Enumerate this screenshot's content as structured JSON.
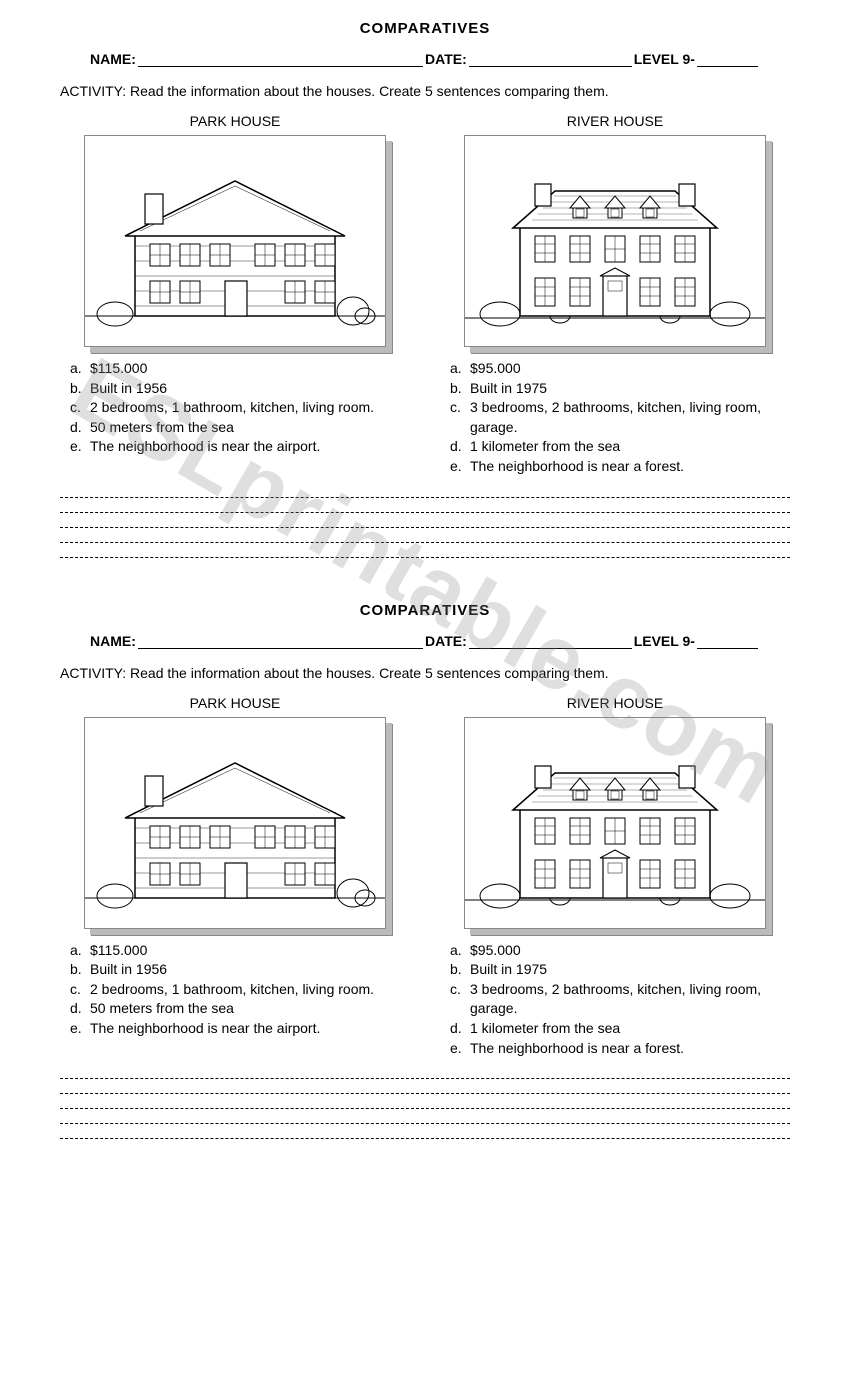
{
  "watermark": "ESLprintable.com",
  "worksheet": {
    "title": "COMPARATIVES",
    "nameLabel": "NAME:",
    "dateLabel": "DATE:",
    "levelLabel": "LEVEL 9-",
    "activityText": "ACTIVITY: Read the information about the houses. Create 5 sentences comparing them.",
    "houses": [
      {
        "title": "PARK HOUSE",
        "details": [
          {
            "letter": "a.",
            "text": "$115.000"
          },
          {
            "letter": "b.",
            "text": "Built in 1956"
          },
          {
            "letter": "c.",
            "text": "2 bedrooms, 1 bathroom, kitchen, living room."
          },
          {
            "letter": "d.",
            "text": "50 meters from the sea"
          },
          {
            "letter": "e.",
            "text": "The neighborhood is near the airport."
          }
        ]
      },
      {
        "title": "RIVER HOUSE",
        "details": [
          {
            "letter": "a.",
            "text": "$95.000"
          },
          {
            "letter": "b.",
            "text": "Built in 1975"
          },
          {
            "letter": "c.",
            "text": "3 bedrooms, 2 bathrooms, kitchen, living room, garage."
          },
          {
            "letter": "d.",
            "text": "1 kilometer from the sea"
          },
          {
            "letter": "e.",
            "text": "The neighborhood is near a forest."
          }
        ]
      }
    ],
    "answerLineCount": 5
  },
  "styling": {
    "pageWidth": 850,
    "pageHeight": 1400,
    "background": "#ffffff",
    "textColor": "#000000",
    "shadowColor": "#bbbbbb",
    "borderColor": "#888888",
    "fontFamily": "Arial, Helvetica, sans-serif",
    "titleFontSize": 15,
    "bodyFontSize": 14,
    "watermarkColor": "rgba(140,140,140,0.28)",
    "watermarkFontSize": 90,
    "watermarkRotation": 30
  }
}
